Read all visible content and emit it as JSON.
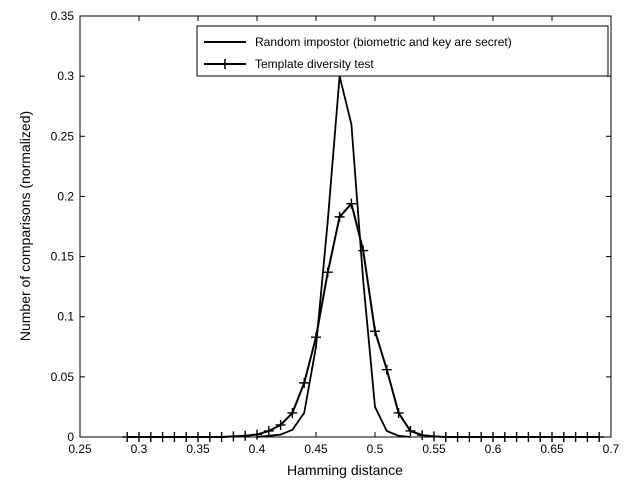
{
  "chart_data": {
    "type": "line",
    "title": "",
    "xlabel": "Hamming distance",
    "ylabel": "Number of comparisons (normalized)",
    "xlim": [
      0.25,
      0.7
    ],
    "ylim": [
      0,
      0.35
    ],
    "xticks": [
      "0.25",
      "0.3",
      "0.35",
      "0.4",
      "0.45",
      "0.5",
      "0.55",
      "0.6",
      "0.65",
      "0.7"
    ],
    "yticks": [
      "0",
      "0.05",
      "0.1",
      "0.15",
      "0.2",
      "0.25",
      "0.3",
      "0.35"
    ],
    "grid": false,
    "legend_position": "top-right",
    "series": [
      {
        "name": "Random impostor (biometric and key are secret)",
        "marker": "none",
        "color": "#000000",
        "x": [
          0.4,
          0.41,
          0.42,
          0.43,
          0.44,
          0.45,
          0.46,
          0.47,
          0.48,
          0.49,
          0.5,
          0.51,
          0.52,
          0.53
        ],
        "y": [
          0.0,
          0.001,
          0.002,
          0.006,
          0.02,
          0.075,
          0.18,
          0.3,
          0.26,
          0.13,
          0.025,
          0.005,
          0.001,
          0.0
        ]
      },
      {
        "name": "Template diversity test",
        "marker": "plus",
        "color": "#000000",
        "x": [
          0.29,
          0.3,
          0.31,
          0.32,
          0.33,
          0.34,
          0.35,
          0.36,
          0.37,
          0.38,
          0.39,
          0.4,
          0.41,
          0.42,
          0.43,
          0.44,
          0.45,
          0.46,
          0.47,
          0.48,
          0.49,
          0.5,
          0.51,
          0.52,
          0.53,
          0.54,
          0.55,
          0.56,
          0.57,
          0.58,
          0.59,
          0.6,
          0.61,
          0.62,
          0.63,
          0.64,
          0.65,
          0.66,
          0.67,
          0.68,
          0.69
        ],
        "y": [
          0,
          0,
          0,
          0,
          0,
          0,
          0,
          0,
          0,
          0.0005,
          0.001,
          0.002,
          0.005,
          0.01,
          0.02,
          0.045,
          0.083,
          0.137,
          0.183,
          0.194,
          0.155,
          0.088,
          0.056,
          0.02,
          0.005,
          0.0015,
          0.0005,
          0,
          0,
          0,
          0,
          0,
          0,
          0,
          0,
          0,
          0,
          0,
          0,
          0,
          0
        ]
      }
    ]
  }
}
